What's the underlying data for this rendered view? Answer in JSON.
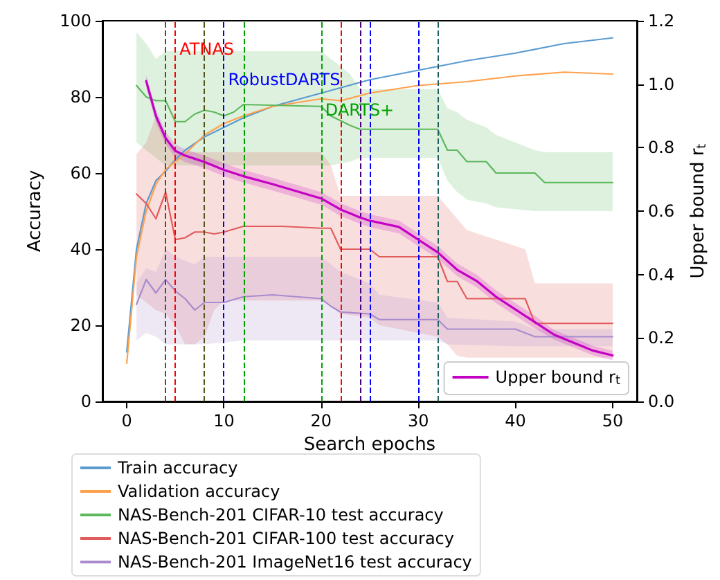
{
  "chart_data": {
    "type": "line",
    "xlabel": "Search epochs",
    "ylabel": "Accuracy",
    "y2label": "Upper bound r$_{t}$",
    "xlim": [
      -2.5,
      52.5
    ],
    "xticks": [
      0,
      10,
      20,
      30,
      40,
      50
    ],
    "ylim": [
      0,
      100
    ],
    "yticks": [
      0,
      20,
      40,
      60,
      80,
      100
    ],
    "y2lim": [
      0,
      1.2
    ],
    "y2ticks": [
      {
        "value": 0,
        "label": "0.0"
      },
      {
        "value": 0.2,
        "label": "0.2"
      },
      {
        "value": 0.4,
        "label": "0.4"
      },
      {
        "value": 0.6,
        "label": "0.6"
      },
      {
        "value": 0.8,
        "label": "0.8"
      },
      {
        "value": 1,
        "label": "1.0"
      },
      {
        "value": 1.2,
        "label": "1.2"
      }
    ],
    "grid": false,
    "legend": "bottom",
    "marker": "none",
    "line_style": "solid",
    "series": [
      {
        "name": "Train accuracy",
        "color": "#5a9bd0",
        "x": [
          0,
          1,
          2,
          3,
          4,
          5,
          6,
          8,
          10,
          12,
          15,
          20,
          25,
          30,
          35,
          40,
          45,
          50
        ],
        "values": [
          13,
          40,
          52,
          58,
          60.5,
          63.5,
          66,
          69.5,
          72,
          74.5,
          77.5,
          81,
          84.5,
          87,
          89.5,
          91.5,
          94,
          95.5
        ]
      },
      {
        "name": "Validation accuracy",
        "color": "#ffa04d",
        "x": [
          0,
          1,
          2,
          3,
          4,
          5,
          6,
          8,
          10,
          12,
          15,
          20,
          22,
          25,
          30,
          35,
          40,
          45,
          50
        ],
        "values": [
          10,
          38,
          50,
          57,
          61,
          63,
          65,
          70,
          73,
          75,
          77.5,
          79.5,
          79,
          81,
          83,
          84,
          85.5,
          86.5,
          86
        ]
      },
      {
        "name": "NAS-Bench-201 CIFAR-10 test accuracy",
        "color": "#5cb85c",
        "x": [
          1,
          2,
          3,
          4,
          5,
          6,
          7,
          8,
          9,
          10,
          11,
          12,
          20,
          21,
          23,
          24,
          32,
          33,
          34,
          35,
          37,
          38,
          42,
          43,
          50
        ],
        "values": [
          83,
          80,
          79,
          79,
          73.5,
          73.5,
          75.5,
          76.5,
          76,
          75,
          76,
          78,
          77.5,
          75,
          72.5,
          71.5,
          71.5,
          66,
          66,
          63,
          63,
          60,
          60,
          57.5,
          57.5
        ],
        "upper": [
          97,
          94,
          90,
          92,
          92,
          92,
          92,
          92,
          92,
          92,
          92,
          92,
          92,
          90,
          86,
          82,
          82,
          77,
          76,
          74,
          72,
          70,
          66,
          65.5,
          65.5
        ],
        "lower": [
          68,
          66,
          64,
          62,
          62,
          62,
          62,
          62,
          62,
          62,
          62,
          62,
          62,
          62,
          63,
          64,
          64,
          58,
          55,
          53,
          52,
          51,
          50,
          50,
          50
        ]
      },
      {
        "name": "NAS-Bench-201 CIFAR-100 test accuracy",
        "color": "#e25c5c",
        "x": [
          1,
          2,
          3,
          4,
          5,
          6,
          7,
          8,
          9,
          10,
          12,
          16,
          20,
          21,
          22,
          25,
          26,
          32,
          33,
          34,
          35,
          41,
          42,
          50
        ],
        "values": [
          54.5,
          52,
          48,
          55,
          42.5,
          43,
          44.5,
          44.5,
          44,
          44.5,
          46,
          46,
          45.5,
          45.5,
          40,
          40,
          38,
          38,
          31.5,
          31.5,
          27,
          27,
          20.5,
          20.5
        ],
        "upper": [
          65,
          68,
          75,
          70,
          65.5,
          65.5,
          65.5,
          65.5,
          65.5,
          65.5,
          65.5,
          65.5,
          65.5,
          62,
          54,
          54,
          54,
          54,
          51,
          48,
          45,
          40,
          31,
          31
        ],
        "lower": [
          28,
          26,
          24,
          23,
          20,
          15,
          15,
          17,
          24,
          26.5,
          26.5,
          26.5,
          26.5,
          25,
          23,
          22,
          20,
          17,
          15,
          12,
          11.5,
          11.5,
          11.5,
          11.5
        ]
      },
      {
        "name": "NAS-Bench-201 ImageNet16 test accuracy",
        "color": "#a98bce",
        "x": [
          1,
          2,
          3,
          4,
          5,
          6,
          7,
          8,
          10,
          12,
          15,
          20,
          21,
          22,
          25,
          26,
          32,
          33,
          40,
          41,
          42,
          50
        ],
        "values": [
          25.5,
          32,
          28.5,
          32,
          29,
          27,
          24,
          26,
          26,
          27.5,
          28,
          27,
          25,
          23.5,
          23,
          21.5,
          21.5,
          19,
          19,
          18,
          17,
          17
        ],
        "upper": [
          31,
          35,
          34,
          40,
          38,
          37,
          36,
          38,
          38,
          38,
          38,
          38,
          36,
          34,
          31,
          28,
          26,
          22,
          21,
          20,
          19,
          19
        ],
        "lower": [
          16,
          18,
          17,
          15,
          15,
          15,
          15,
          15,
          15.5,
          16,
          16,
          16,
          16,
          16,
          16,
          16,
          16,
          15,
          14.5,
          14.5,
          14.5,
          14.5
        ]
      },
      {
        "name": "Upper bound r$_{t}$",
        "color": "#c400c4",
        "axis": "y2",
        "x": [
          2,
          3,
          4,
          5,
          6,
          7,
          8,
          10,
          12,
          15,
          20,
          22,
          24,
          25,
          28,
          30,
          32,
          34,
          36,
          38,
          40,
          42,
          44,
          46,
          48,
          50
        ],
        "values": [
          1.01,
          0.9,
          0.83,
          0.79,
          0.775,
          0.765,
          0.755,
          0.73,
          0.71,
          0.685,
          0.64,
          0.605,
          0.58,
          0.57,
          0.55,
          0.51,
          0.47,
          0.415,
          0.38,
          0.33,
          0.29,
          0.25,
          0.21,
          0.185,
          0.16,
          0.145
        ],
        "upper": [
          1.03,
          0.92,
          0.85,
          0.81,
          0.795,
          0.785,
          0.775,
          0.75,
          0.73,
          0.705,
          0.66,
          0.625,
          0.6,
          0.59,
          0.57,
          0.53,
          0.49,
          0.435,
          0.4,
          0.35,
          0.31,
          0.27,
          0.225,
          0.2,
          0.175,
          0.16
        ],
        "lower": [
          0.99,
          0.88,
          0.81,
          0.77,
          0.755,
          0.745,
          0.735,
          0.71,
          0.69,
          0.665,
          0.62,
          0.585,
          0.56,
          0.55,
          0.53,
          0.49,
          0.45,
          0.395,
          0.36,
          0.31,
          0.27,
          0.23,
          0.195,
          0.17,
          0.145,
          0.13
        ]
      }
    ],
    "ref_lines": [
      {
        "axis": "x",
        "value": 4,
        "color": "#55551a",
        "line_style": "dashed"
      },
      {
        "axis": "x",
        "value": 5,
        "color": "#ff0000",
        "line_style": "dashed",
        "label": "ATNAS"
      },
      {
        "axis": "x",
        "value": 8,
        "color": "#55551a",
        "line_style": "dashed"
      },
      {
        "axis": "x",
        "value": 10,
        "color": "#0000ff",
        "line_style": "dashed",
        "label": "RobustDARTS"
      },
      {
        "axis": "x",
        "value": 12,
        "color": "#00a000",
        "line_style": "dashed"
      },
      {
        "axis": "x",
        "value": 20,
        "color": "#00a000",
        "line_style": "dashed",
        "label": "DARTS+"
      },
      {
        "axis": "x",
        "value": 22,
        "color": "#ff0000",
        "line_style": "dashed"
      },
      {
        "axis": "x",
        "value": 24,
        "color": "#4b0082",
        "line_style": "dashed"
      },
      {
        "axis": "x",
        "value": 25,
        "color": "#0000ff",
        "line_style": "dashed"
      },
      {
        "axis": "x",
        "value": 30,
        "color": "#0000ff",
        "line_style": "dashed"
      },
      {
        "axis": "x",
        "value": 32,
        "color": "#1f5f5f",
        "line_style": "dashed"
      }
    ]
  }
}
